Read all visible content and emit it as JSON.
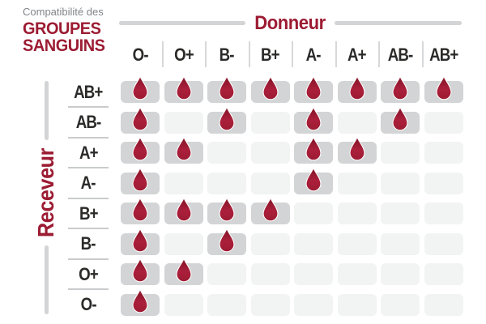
{
  "title": {
    "kicker": "Compatibilité des",
    "line1": "GROUPES",
    "line2": "SANGUINS"
  },
  "donor_axis": {
    "label": "Donneur"
  },
  "receiver_axis": {
    "label": "Receveur"
  },
  "chart_data": {
    "type": "heatmap",
    "title": "Compatibilité des GROUPES SANGUINS",
    "x_axis_label": "Donneur",
    "y_axis_label": "Receveur",
    "columns": [
      "O-",
      "O+",
      "B-",
      "B+",
      "A-",
      "A+",
      "AB-",
      "AB+"
    ],
    "rows": [
      "AB+",
      "AB-",
      "A+",
      "A-",
      "B+",
      "B-",
      "O+",
      "O-"
    ],
    "matrix": [
      [
        1,
        1,
        1,
        1,
        1,
        1,
        1,
        1
      ],
      [
        1,
        0,
        1,
        0,
        1,
        0,
        1,
        0
      ],
      [
        1,
        1,
        0,
        0,
        1,
        1,
        0,
        0
      ],
      [
        1,
        0,
        0,
        0,
        1,
        0,
        0,
        0
      ],
      [
        1,
        1,
        1,
        1,
        0,
        0,
        0,
        0
      ],
      [
        1,
        0,
        1,
        0,
        0,
        0,
        0,
        0
      ],
      [
        1,
        1,
        0,
        0,
        0,
        0,
        0,
        0
      ],
      [
        1,
        0,
        0,
        0,
        0,
        0,
        0,
        0
      ]
    ],
    "marker": "blood-drop",
    "grid": "rounded-cells",
    "legend_position": "none"
  },
  "colors": {
    "burgundy": "#9C1C33",
    "drop_red": "#A81E39",
    "drop_red_dark": "#851528",
    "cell_filled": "#D2D4D5",
    "cell_empty": "#F2F3F3",
    "axis_line_gray": "#D2D4D5",
    "separator_gray": "#C9CBCC",
    "text_dark": "#2B2A29",
    "text_gray": "#828487"
  }
}
